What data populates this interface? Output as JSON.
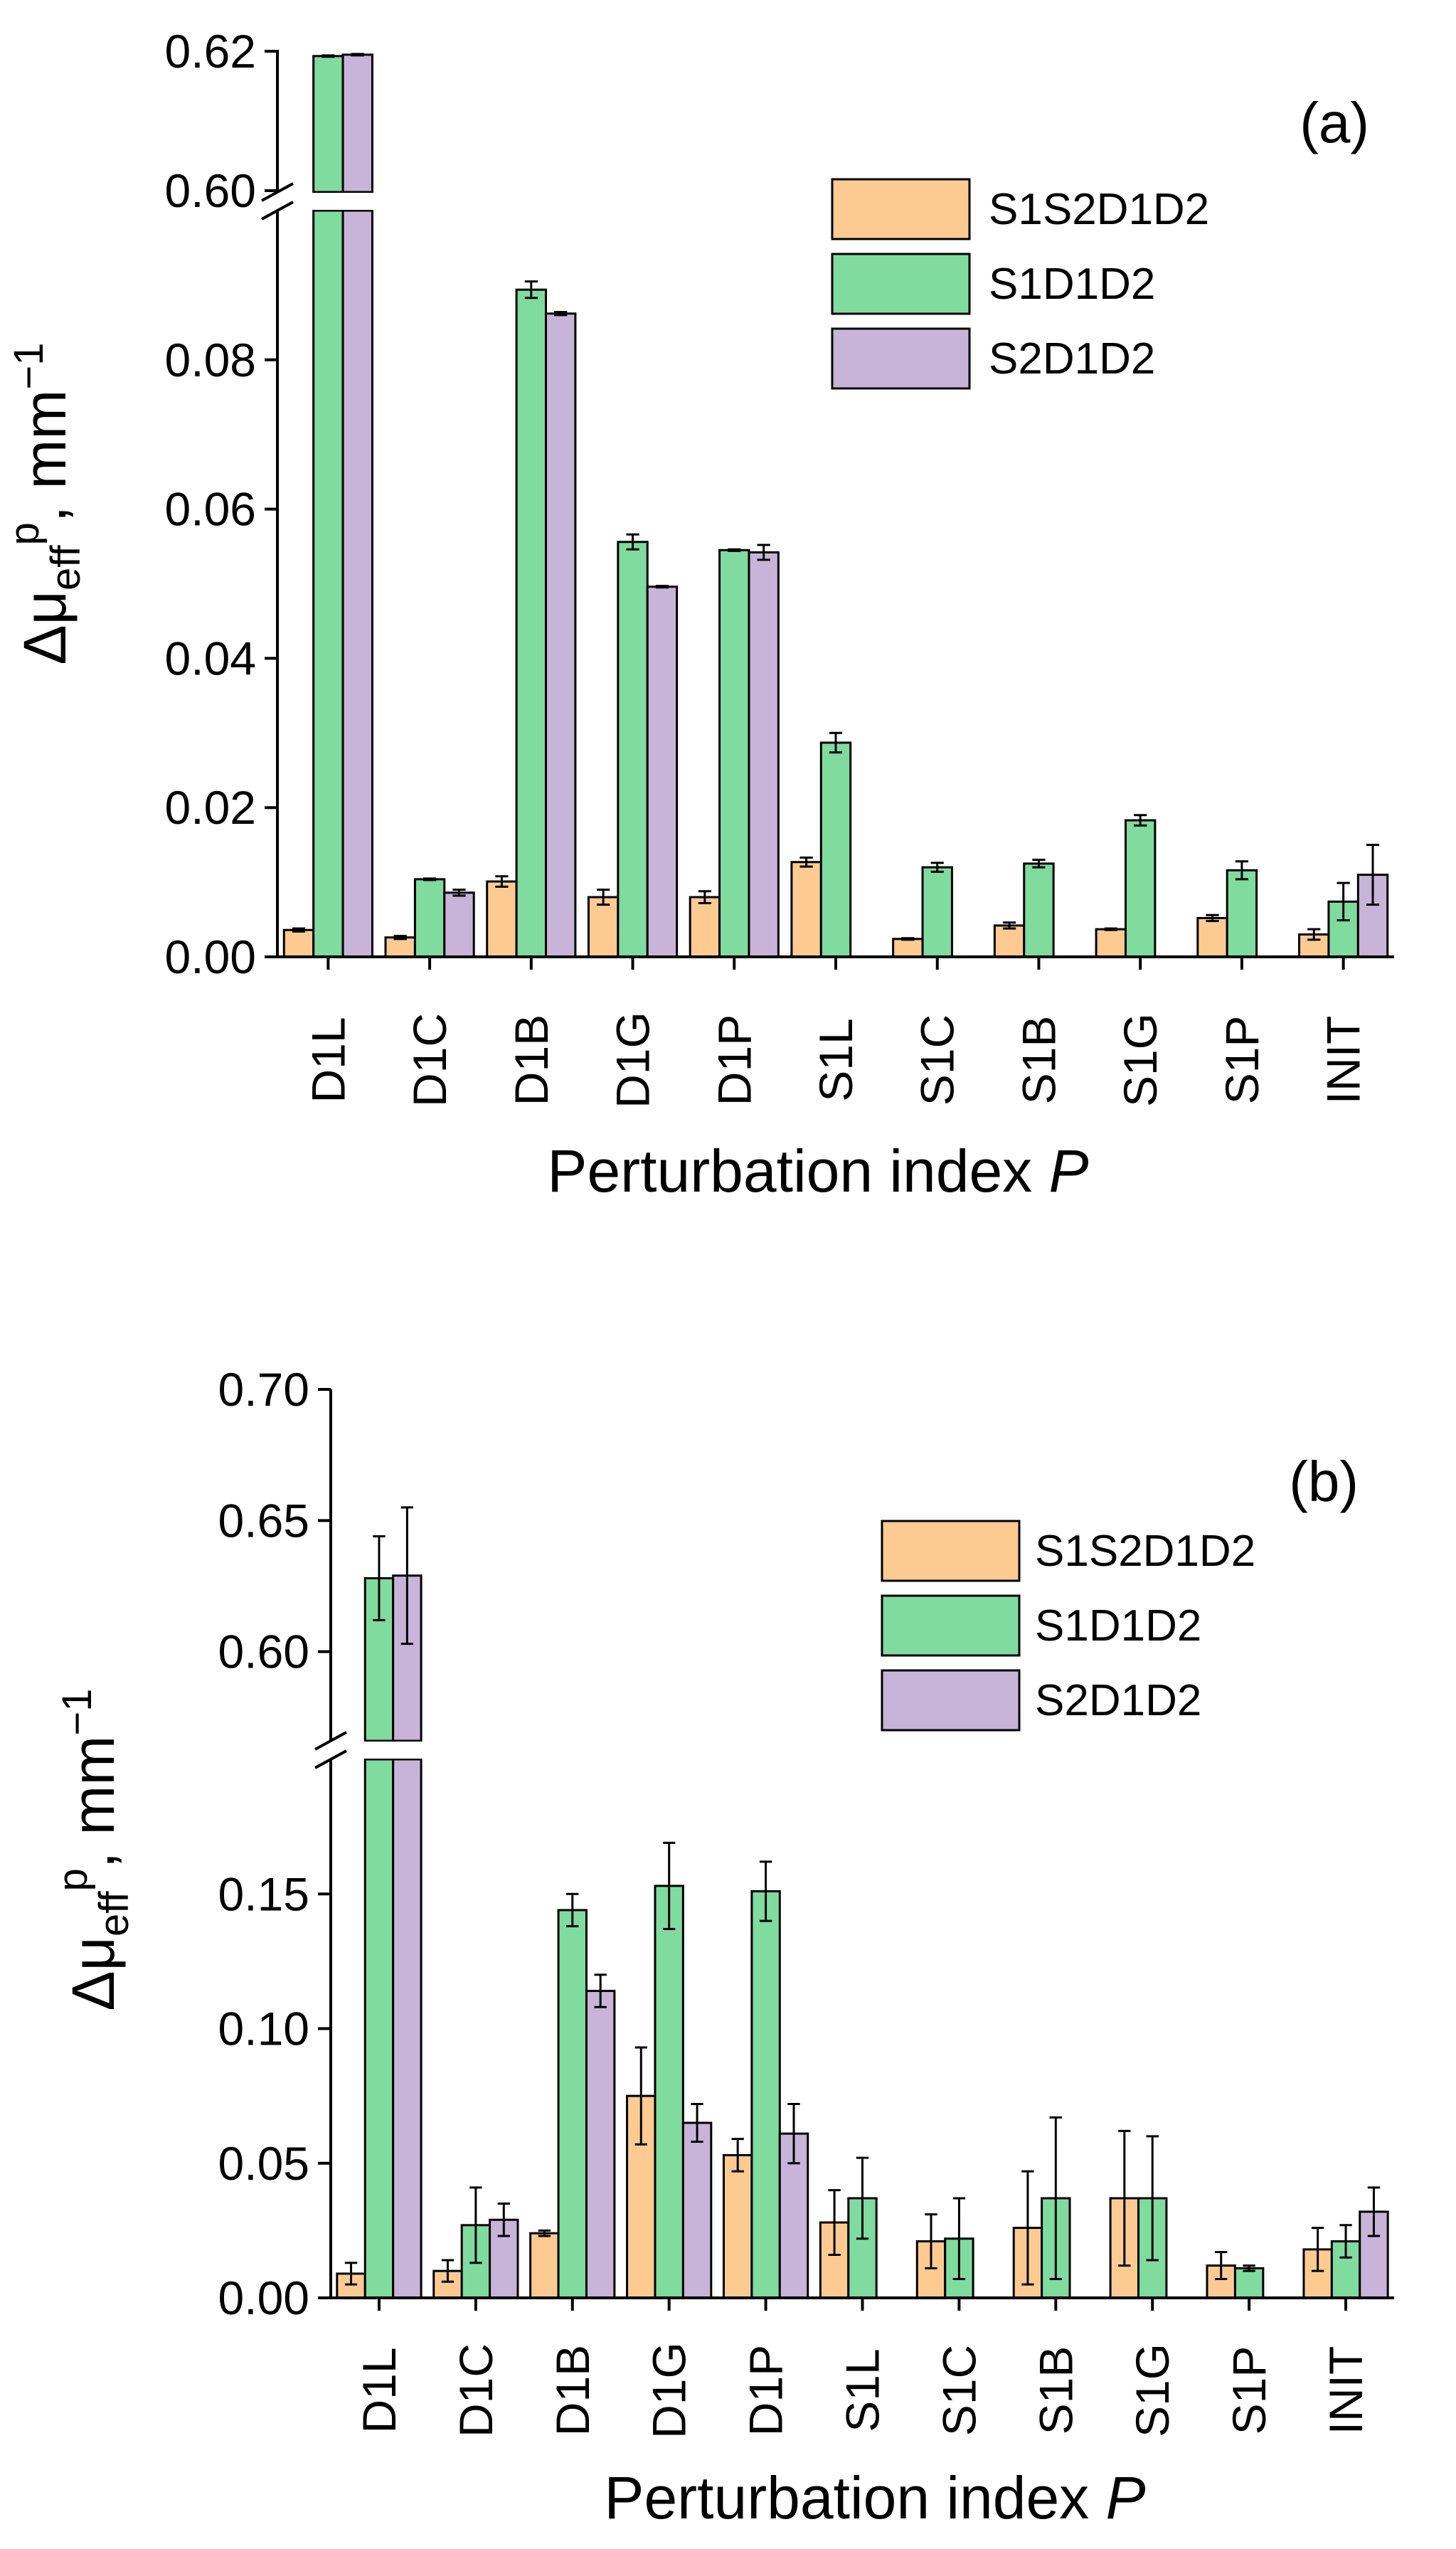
{
  "chart_data": [
    {
      "type": "bar",
      "panel_label": "(a)",
      "xlabel": "Perturbation index",
      "xlabel_var": "P",
      "ylabel": {
        "prefix": "Δμ",
        "sub": "eff",
        "sup": "p",
        "unit": ", mm",
        "unit_sup": "−1"
      },
      "categories": [
        "D1L",
        "D1C",
        "D1B",
        "D1G",
        "D1P",
        "S1L",
        "S1C",
        "S1B",
        "S1G",
        "S1P",
        "INIT"
      ],
      "ylim_lower": [
        0,
        0.1
      ],
      "ylim_upper": [
        0.5998,
        0.6202
      ],
      "yticks_lower": [
        "0.00",
        "0.02",
        "0.04",
        "0.06",
        "0.08"
      ],
      "yticks_upper": [
        "0.60",
        "0.62"
      ],
      "legend": {
        "position": "top-right",
        "entries": [
          "S1S2D1D2",
          "S1D1D2",
          "S2D1D2"
        ]
      },
      "series": [
        {
          "name": "S1S2D1D2",
          "color": "#FDCB92",
          "values": [
            0.0036,
            0.0026,
            0.0101,
            0.008,
            0.008,
            0.0127,
            0.0024,
            0.0042,
            0.0037,
            0.0052,
            0.003
          ],
          "errors": [
            0.0002,
            0.0002,
            0.0007,
            0.001,
            0.0008,
            0.0006,
            0.0001,
            0.0004,
            0.0001,
            0.0004,
            0.0007
          ]
        },
        {
          "name": "S1D1D2",
          "color": "#80DB9E",
          "values": [
            0.6193,
            0.0104,
            0.0894,
            0.0556,
            0.0545,
            0.0287,
            0.012,
            0.0125,
            0.0183,
            0.0116,
            0.0074
          ],
          "errors": [
            0.0001,
            0.0001,
            0.0011,
            0.001,
            0.0001,
            0.0013,
            0.0006,
            0.0005,
            0.0007,
            0.0012,
            0.0025
          ]
        },
        {
          "name": "S2D1D2",
          "color": "#C8B4D8",
          "values": [
            0.6195,
            0.0086,
            0.0862,
            0.0496,
            0.0542,
            null,
            null,
            null,
            null,
            null,
            0.011
          ],
          "errors": [
            0.0001,
            0.0004,
            0.0002,
            0.0001,
            0.001,
            null,
            null,
            null,
            null,
            null,
            0.004
          ]
        }
      ]
    },
    {
      "type": "bar",
      "panel_label": "(b)",
      "xlabel": "Perturbation index",
      "xlabel_var": "P",
      "ylabel": {
        "prefix": "Δμ",
        "sub": "eff",
        "sup": "p",
        "unit": ", mm",
        "unit_sup": "−1"
      },
      "categories": [
        "D1L",
        "D1C",
        "D1B",
        "D1G",
        "D1P",
        "S1L",
        "S1C",
        "S1B",
        "S1G",
        "S1P",
        "INIT"
      ],
      "ylim_lower": [
        0,
        0.2
      ],
      "ylim_upper": [
        0.566,
        0.7
      ],
      "yticks_lower": [
        "0.00",
        "0.05",
        "0.10",
        "0.15"
      ],
      "yticks_upper": [
        "0.60",
        "0.65",
        "0.70"
      ],
      "legend": {
        "position": "top-right",
        "entries": [
          "S1S2D1D2",
          "S1D1D2",
          "S2D1D2"
        ]
      },
      "series": [
        {
          "name": "S1S2D1D2",
          "color": "#FDCB92",
          "values": [
            0.009,
            0.01,
            0.024,
            0.075,
            0.053,
            0.028,
            0.021,
            0.026,
            0.037,
            0.012,
            0.018
          ],
          "errors": [
            0.004,
            0.004,
            0.001,
            0.018,
            0.006,
            0.012,
            0.01,
            0.021,
            0.025,
            0.005,
            0.008
          ]
        },
        {
          "name": "S1D1D2",
          "color": "#80DB9E",
          "values": [
            0.628,
            0.027,
            0.144,
            0.153,
            0.151,
            0.037,
            0.022,
            0.037,
            0.037,
            0.011,
            0.021
          ],
          "errors": [
            0.016,
            0.014,
            0.006,
            0.016,
            0.011,
            0.015,
            0.015,
            0.03,
            0.023,
            0.001,
            0.006
          ]
        },
        {
          "name": "S2D1D2",
          "color": "#C8B4D8",
          "values": [
            0.629,
            0.029,
            0.114,
            0.065,
            0.061,
            null,
            null,
            null,
            null,
            null,
            0.032
          ],
          "errors": [
            0.026,
            0.006,
            0.006,
            0.007,
            0.011,
            null,
            null,
            null,
            null,
            null,
            0.009
          ]
        }
      ]
    }
  ]
}
